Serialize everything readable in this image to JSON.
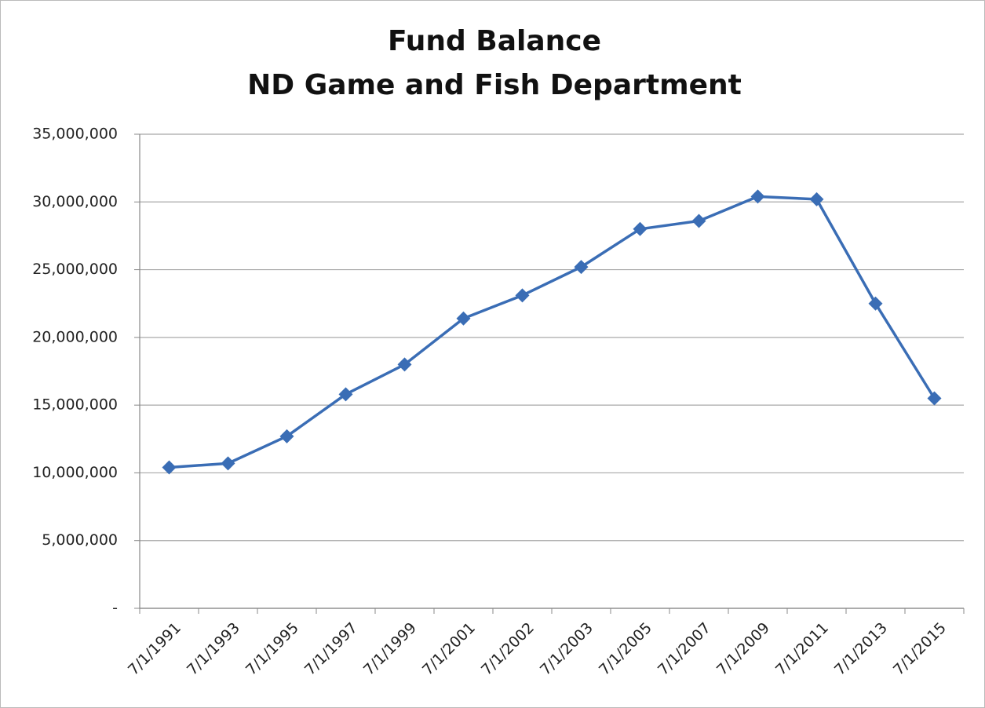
{
  "chart_data": {
    "type": "line",
    "title": "Fund Balance",
    "subtitle": "ND Game and Fish Department",
    "categories": [
      "7/1/1991",
      "7/1/1993",
      "7/1/1995",
      "7/1/1997",
      "7/1/1999",
      "7/1/2001",
      "7/1/2002",
      "7/1/2003",
      "7/1/2005",
      "7/1/2007",
      "7/1/2009",
      "7/1/2011",
      "7/1/2013",
      "7/1/2015"
    ],
    "values": [
      10400000,
      10700000,
      12700000,
      15800000,
      18000000,
      21400000,
      23100000,
      25200000,
      28000000,
      28600000,
      30400000,
      30200000,
      22500000,
      15500000
    ],
    "color": "#3a6db5",
    "ylim": [
      0,
      35000000
    ],
    "yticks": [
      {
        "value": 0,
        "label": "-"
      },
      {
        "value": 5000000,
        "label": "5,000,000"
      },
      {
        "value": 10000000,
        "label": "10,000,000"
      },
      {
        "value": 15000000,
        "label": "15,000,000"
      },
      {
        "value": 20000000,
        "label": "20,000,000"
      },
      {
        "value": 25000000,
        "label": "25,000,000"
      },
      {
        "value": 30000000,
        "label": "30,000,000"
      },
      {
        "value": 35000000,
        "label": "35,000,000"
      }
    ],
    "grid": true
  }
}
